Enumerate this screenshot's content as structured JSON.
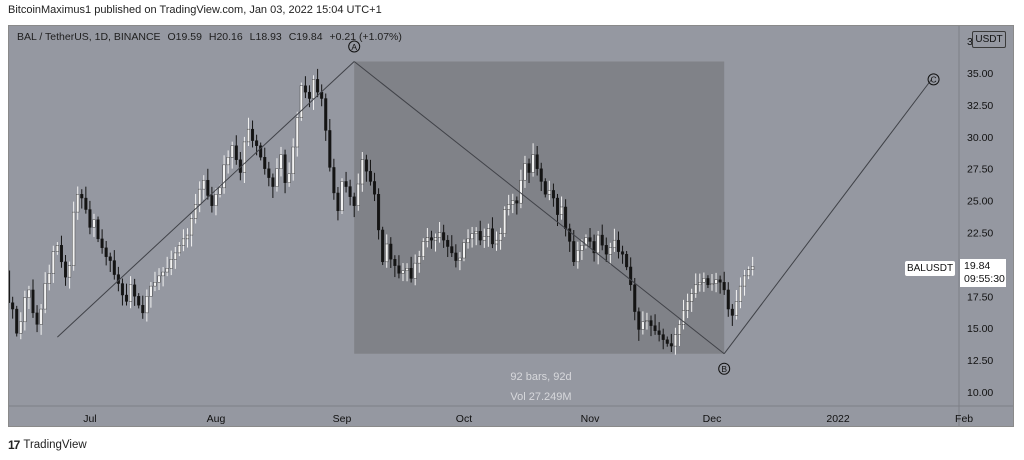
{
  "header": {
    "published_text": "BitcoinMaximus1 published on TradingView.com, Jan 03, 2022 15:04 UTC+1"
  },
  "legend": {
    "symbol": "BAL / TetherUS, 1D, BINANCE",
    "open_label": "O",
    "open": "19.59",
    "high_label": "H",
    "high": "20.16",
    "low_label": "L",
    "low": "18.93",
    "close_label": "C",
    "close": "19.84",
    "change": "+0.21 (+1.07%)"
  },
  "currency_tag": "USDT",
  "pair_tag": "BALUSDT",
  "price_tag": {
    "price": "19.84",
    "countdown": "09:55:30"
  },
  "range_info": {
    "bars": "92 bars, 92d",
    "volume": "Vol 27.249M"
  },
  "wave_labels": [
    "A",
    "B",
    "C"
  ],
  "footer": {
    "logo": "17",
    "brand": "TradingView"
  },
  "chart_data": {
    "type": "candlestick",
    "title": "BAL / TetherUS, 1D, BINANCE",
    "y_ticks": [
      "35.00",
      "32.50",
      "30.00",
      "27.50",
      "25.00",
      "22.50",
      "17.50",
      "15.00",
      "12.50",
      "10.00"
    ],
    "y_top_partial": "3",
    "x_ticks": [
      {
        "label": "Jul",
        "date": "2021-07-01"
      },
      {
        "label": "Aug",
        "date": "2021-08-01"
      },
      {
        "label": "Sep",
        "date": "2021-09-01"
      },
      {
        "label": "Oct",
        "date": "2021-10-01"
      },
      {
        "label": "Nov",
        "date": "2021-11-01"
      },
      {
        "label": "Dec",
        "date": "2021-12-01"
      },
      {
        "label": "2022",
        "date": "2022-01-01"
      },
      {
        "label": "Feb",
        "date": "2022-02-01"
      }
    ],
    "wave_points": [
      {
        "label": "A",
        "date": "2021-09-04",
        "price": 35.9
      },
      {
        "label": "B",
        "date": "2021-12-04",
        "price": 13.0
      },
      {
        "label": "C",
        "date": "2022-01-24",
        "price": 34.5
      }
    ],
    "wave_start": {
      "date": "2021-06-23",
      "price": 14.3
    },
    "date_range_box": {
      "from": "2021-09-04",
      "to": "2021-12-04",
      "price_high": 35.9,
      "price_low": 13.0
    },
    "last_price": 19.84,
    "daily_closes": [
      26.5,
      25.2,
      23.5,
      24.1,
      24.8,
      23.2,
      22.3,
      19.5,
      17.0,
      16.5,
      14.6,
      15.5,
      17.4,
      18.0,
      16.2,
      15.3,
      16.5,
      18.5,
      19.3,
      21.0,
      21.5,
      20.2,
      19.0,
      19.9,
      24.1,
      25.5,
      25.2,
      24.3,
      22.9,
      23.5,
      22.0,
      21.3,
      20.6,
      20.3,
      19.2,
      18.5,
      17.6,
      17.1,
      18.4,
      17.5,
      16.8,
      16.2,
      17.5,
      18.3,
      18.6,
      19.1,
      19.4,
      19.7,
      20.4,
      20.9,
      21.5,
      22.0,
      22.3,
      23.6,
      24.7,
      25.9,
      26.6,
      25.4,
      24.6,
      25.5,
      26.0,
      27.8,
      28.4,
      29.3,
      28.2,
      27.2,
      29.6,
      30.6,
      29.7,
      29.3,
      28.4,
      27.5,
      26.8,
      26.1,
      27.5,
      28.6,
      26.4,
      27.1,
      29.2,
      31.5,
      34.0,
      33.5,
      33.0,
      34.5,
      33.5,
      33.0,
      30.5,
      27.6,
      25.6,
      24.2,
      26.5,
      26.1,
      25.3,
      24.6,
      26.3,
      28.2,
      27.3,
      26.5,
      25.5,
      22.7,
      20.2,
      21.6,
      20.4,
      19.9,
      19.3,
      19.5,
      19.7,
      18.9,
      20.1,
      20.6,
      21.8,
      22.1,
      21.9,
      22.1,
      22.5,
      21.9,
      21.4,
      20.9,
      20.3,
      20.5,
      21.7,
      22.0,
      22.4,
      22.6,
      21.9,
      22.2,
      22.8,
      21.6,
      21.9,
      22.4,
      24.3,
      24.7,
      25.0,
      24.8,
      26.6,
      27.9,
      27.2,
      28.6,
      27.5,
      26.5,
      25.5,
      25.8,
      25.2,
      23.9,
      24.5,
      22.8,
      21.8,
      20.2,
      21.1,
      21.5,
      22.1,
      21.8,
      20.9,
      22.3,
      21.5,
      20.8,
      21.3,
      21.9,
      21.0,
      20.8,
      19.8,
      18.4,
      16.3,
      14.9,
      15.5,
      15.6,
      15.2,
      14.8,
      14.5,
      14.1,
      13.8,
      13.6,
      14.5,
      15.3,
      16.4,
      17.1,
      17.7,
      18.4,
      18.6,
      18.9,
      18.4,
      18.5,
      18.8,
      18.6,
      18.0,
      16.5,
      16.0,
      17.1,
      18.3,
      19.1,
      19.59,
      19.84
    ]
  }
}
